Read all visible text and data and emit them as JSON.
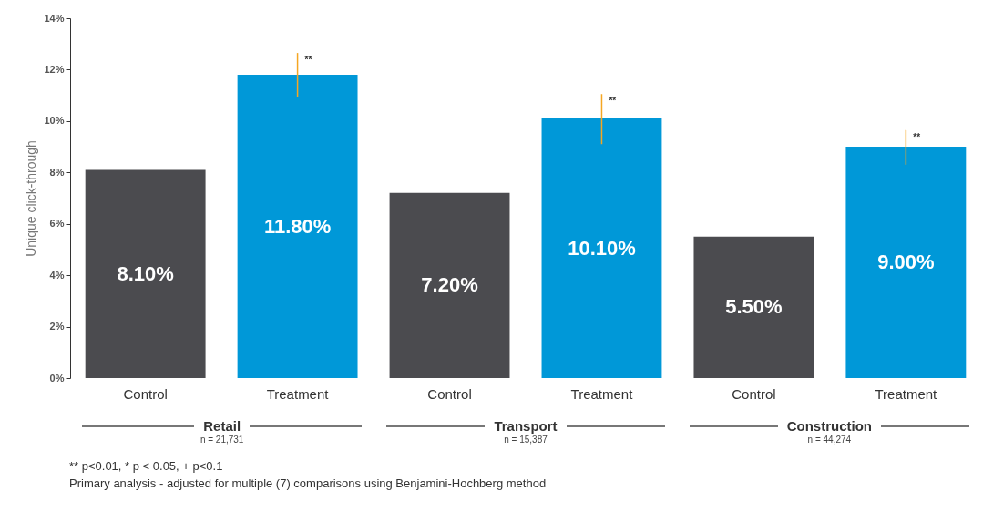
{
  "chart_data": {
    "type": "bar",
    "ylabel": "Unique click-through",
    "categories": [
      "Control",
      "Treatment",
      "Control",
      "Treatment",
      "Control",
      "Treatment"
    ],
    "values": [
      8.1,
      11.8,
      7.2,
      10.1,
      5.5,
      9.0
    ],
    "colors": [
      "#4b4b4f",
      "#0098d8",
      "#4b4b4f",
      "#0098d8",
      "#4b4b4f",
      "#0098d8"
    ],
    "value_labels": [
      "8.10%",
      "11.80%",
      "7.20%",
      "10.10%",
      "5.50%",
      "9.00%"
    ],
    "errors": [
      null,
      [
        10.95,
        12.65
      ],
      null,
      [
        9.1,
        11.05
      ],
      null,
      [
        8.3,
        9.65
      ]
    ],
    "ylim": [
      0,
      14
    ],
    "yticks": [
      {
        "value": 0,
        "label": "0%"
      },
      {
        "value": 2,
        "label": "2%"
      },
      {
        "value": 4,
        "label": "4%"
      },
      {
        "value": 6,
        "label": "6%"
      },
      {
        "value": 8,
        "label": "8%"
      },
      {
        "value": 10,
        "label": "10%"
      },
      {
        "value": 12,
        "label": "12%"
      },
      {
        "value": 14,
        "label": "14%"
      }
    ],
    "grid": false,
    "annotations": [
      "**",
      "**",
      "**",
      "Retail",
      "n = 21,731",
      "Transport",
      "n = 15,387",
      "Construction",
      "n = 44,274",
      "** p<0.01, * p < 0.05, + p<0.1",
      "Primary analysis - adjusted for multiple (7) comparisons using Benjamini-Hochberg method"
    ]
  }
}
